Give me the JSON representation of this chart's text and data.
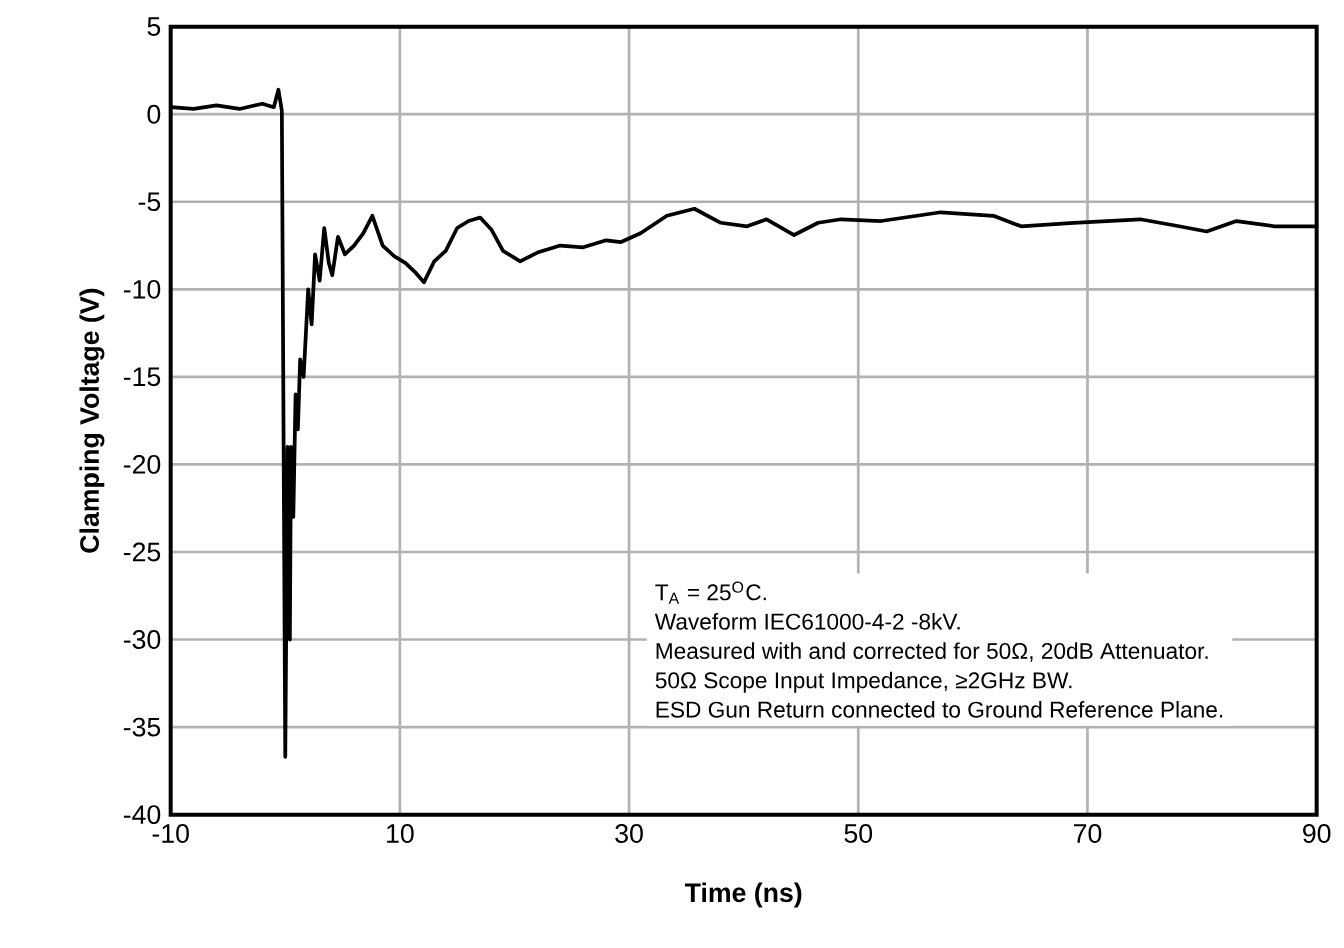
{
  "chart_data": {
    "type": "line",
    "xlabel": "Time (ns)",
    "ylabel": "Clamping Voltage (V)",
    "xlim": [
      -10,
      90
    ],
    "ylim": [
      -40,
      5
    ],
    "xticks": [
      -10,
      10,
      30,
      50,
      70,
      90
    ],
    "yticks": [
      -40,
      -35,
      -30,
      -25,
      -20,
      -15,
      -10,
      -5,
      0,
      5
    ],
    "grid": true,
    "line_style": "solid",
    "marker": "none",
    "series": [
      {
        "color": "#000000",
        "x": [
          -10,
          -8,
          -6,
          -4,
          -2,
          -1,
          -0.6,
          -0.3,
          0,
          0.2,
          0.4,
          0.5,
          0.7,
          0.9,
          1.1,
          1.3,
          1.6,
          2.0,
          2.3,
          2.6,
          3.0,
          3.4,
          3.8,
          4.1,
          4.6,
          5.2,
          6,
          6.8,
          7.6,
          8.5,
          9.5,
          10.5,
          11.3,
          12.1,
          13,
          14,
          15,
          16,
          17,
          18,
          19,
          20.5,
          22,
          24,
          26,
          28,
          29.3,
          31,
          33.3,
          35.7,
          38,
          40.3,
          42,
          44.4,
          46.5,
          48.5,
          52,
          57.2,
          61.8,
          64.2,
          68.8,
          74.6,
          78,
          80.4,
          83,
          86.3,
          90
        ],
        "values": [
          0.4,
          0.3,
          0.5,
          0.3,
          0.6,
          0.4,
          1.4,
          0.2,
          -36.7,
          -19,
          -30,
          -19,
          -23,
          -16,
          -18,
          -14,
          -15,
          -10,
          -12,
          -8,
          -9.5,
          -6.5,
          -8.5,
          -9.2,
          -7,
          -8,
          -7.5,
          -6.8,
          -5.8,
          -7.5,
          -8.1,
          -8.5,
          -9,
          -9.6,
          -8.4,
          -7.8,
          -6.5,
          -6.1,
          -5.9,
          -6.6,
          -7.8,
          -8.4,
          -7.9,
          -7.5,
          -7.6,
          -7.2,
          -7.3,
          -6.8,
          -5.8,
          -5.4,
          -6.2,
          -6.4,
          -6.0,
          -6.9,
          -6.2,
          -6.0,
          -6.1,
          -5.6,
          -5.8,
          -6.4,
          -6.2,
          -6.0,
          -6.4,
          -6.7,
          -6.1,
          -6.4,
          -6.4
        ]
      }
    ],
    "annotations": [
      "T$_{A}$ = 25$^{O}$C.",
      "Waveform IEC61000-4-2 -8kV.",
      "Measured with and corrected for 50Ω, 20dB Attenuator.",
      "50Ω Scope Input Impedance, ≥2GHz BW.",
      "ESD Gun Return connected to Ground Reference Plane."
    ]
  }
}
